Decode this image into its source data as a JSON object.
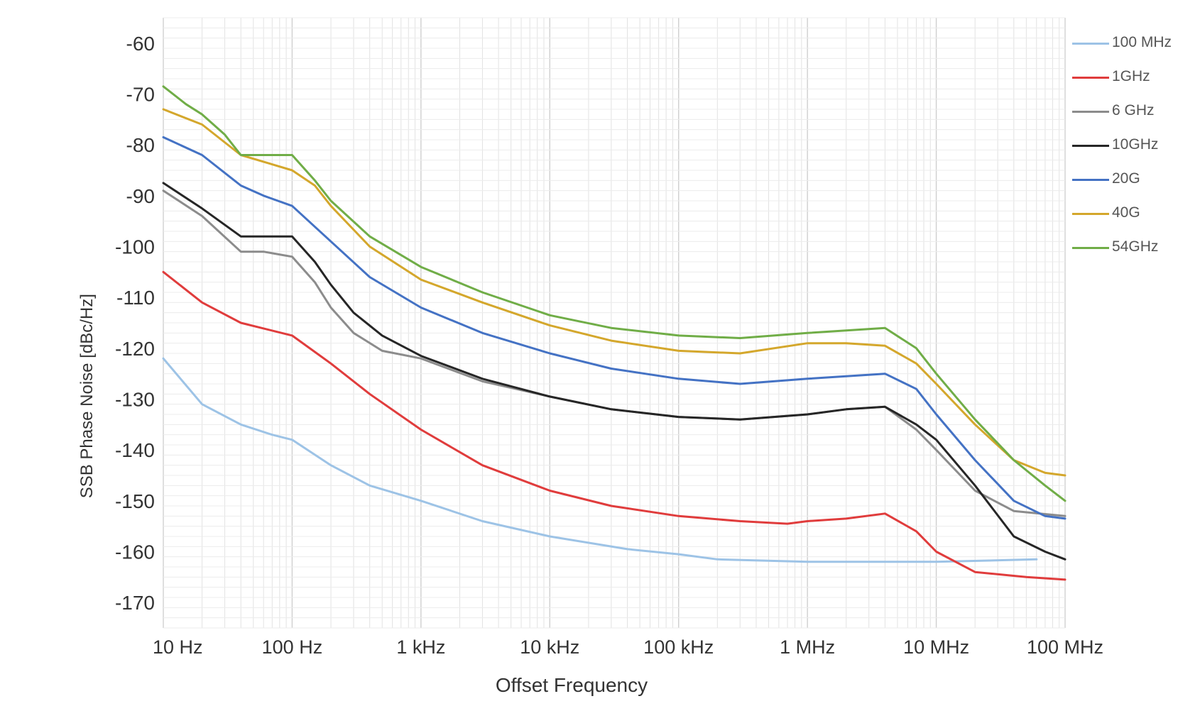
{
  "chart_data": {
    "type": "line",
    "title": "",
    "xlabel": "Offset Frequency",
    "ylabel": "SSB Phase Noise [dBc/Hz]",
    "x_scale": "log",
    "xlim": [
      10,
      100000000
    ],
    "ylim": [
      -175,
      -55
    ],
    "yticks": [
      -60,
      -70,
      -80,
      -90,
      -100,
      -110,
      -120,
      -130,
      -140,
      -150,
      -160,
      -170
    ],
    "xticks": [
      {
        "value": 10,
        "label": "10 Hz"
      },
      {
        "value": 100,
        "label": "100 Hz"
      },
      {
        "value": 1000,
        "label": "1 kHz"
      },
      {
        "value": 10000,
        "label": "10 kHz"
      },
      {
        "value": 100000,
        "label": "100 kHz"
      },
      {
        "value": 1000000,
        "label": "1 MHz"
      },
      {
        "value": 10000000,
        "label": "10 MHz"
      },
      {
        "value": 100000000,
        "label": "100 MHz"
      }
    ],
    "grid": true,
    "legend_position": "right",
    "series": [
      {
        "name": "100 MHz",
        "color": "#9dc3e6",
        "points": [
          [
            10,
            -122
          ],
          [
            20,
            -131
          ],
          [
            40,
            -135
          ],
          [
            70,
            -137
          ],
          [
            100,
            -138
          ],
          [
            200,
            -143
          ],
          [
            400,
            -147
          ],
          [
            1000,
            -150
          ],
          [
            3000,
            -154
          ],
          [
            10000,
            -157
          ],
          [
            40000,
            -159.5
          ],
          [
            100000,
            -160.5
          ],
          [
            200000,
            -161.5
          ],
          [
            1000000,
            -162
          ],
          [
            4000000,
            -162
          ],
          [
            10000000,
            -162
          ],
          [
            60000000,
            -161.5
          ]
        ]
      },
      {
        "name": "1GHz",
        "color": "#e03c3c",
        "points": [
          [
            10,
            -105
          ],
          [
            20,
            -111
          ],
          [
            40,
            -115
          ],
          [
            100,
            -117.5
          ],
          [
            200,
            -123
          ],
          [
            400,
            -129
          ],
          [
            1000,
            -136
          ],
          [
            3000,
            -143
          ],
          [
            10000,
            -148
          ],
          [
            30000,
            -151
          ],
          [
            100000,
            -153
          ],
          [
            300000,
            -154
          ],
          [
            700000,
            -154.5
          ],
          [
            1000000,
            -154
          ],
          [
            2000000,
            -153.5
          ],
          [
            4000000,
            -152.5
          ],
          [
            7000000,
            -156
          ],
          [
            10000000,
            -160
          ],
          [
            20000000,
            -164
          ],
          [
            50000000,
            -165
          ],
          [
            100000000,
            -165.5
          ]
        ]
      },
      {
        "name": "6 GHz",
        "color": "#8c8c8c",
        "points": [
          [
            10,
            -89
          ],
          [
            20,
            -94
          ],
          [
            40,
            -101
          ],
          [
            60,
            -101
          ],
          [
            100,
            -102
          ],
          [
            150,
            -107
          ],
          [
            200,
            -112
          ],
          [
            300,
            -117
          ],
          [
            500,
            -120.5
          ],
          [
            1000,
            -122
          ],
          [
            3000,
            -126.5
          ],
          [
            10000,
            -129.5
          ],
          [
            30000,
            -132
          ],
          [
            100000,
            -133.5
          ],
          [
            300000,
            -134
          ],
          [
            1000000,
            -133
          ],
          [
            2000000,
            -132
          ],
          [
            4000000,
            -131.5
          ],
          [
            7000000,
            -136
          ],
          [
            10000000,
            -140
          ],
          [
            20000000,
            -148
          ],
          [
            40000000,
            -152
          ],
          [
            100000000,
            -153
          ]
        ]
      },
      {
        "name": "10GHz",
        "color": "#262626",
        "points": [
          [
            10,
            -87.5
          ],
          [
            20,
            -92.5
          ],
          [
            40,
            -98
          ],
          [
            100,
            -98
          ],
          [
            150,
            -103
          ],
          [
            200,
            -107.5
          ],
          [
            300,
            -113
          ],
          [
            500,
            -117.5
          ],
          [
            1000,
            -121.5
          ],
          [
            3000,
            -126
          ],
          [
            10000,
            -129.5
          ],
          [
            30000,
            -132
          ],
          [
            100000,
            -133.5
          ],
          [
            300000,
            -134
          ],
          [
            1000000,
            -133
          ],
          [
            2000000,
            -132
          ],
          [
            4000000,
            -131.5
          ],
          [
            7000000,
            -135
          ],
          [
            10000000,
            -138
          ],
          [
            20000000,
            -147
          ],
          [
            40000000,
            -157
          ],
          [
            70000000,
            -160
          ],
          [
            100000000,
            -161.5
          ]
        ]
      },
      {
        "name": "20G",
        "color": "#4472c4",
        "points": [
          [
            10,
            -78.5
          ],
          [
            20,
            -82
          ],
          [
            40,
            -88
          ],
          [
            60,
            -90
          ],
          [
            100,
            -92
          ],
          [
            200,
            -99
          ],
          [
            400,
            -106
          ],
          [
            1000,
            -112
          ],
          [
            3000,
            -117
          ],
          [
            10000,
            -121
          ],
          [
            30000,
            -124
          ],
          [
            100000,
            -126
          ],
          [
            300000,
            -127
          ],
          [
            1000000,
            -126
          ],
          [
            2000000,
            -125.5
          ],
          [
            4000000,
            -125
          ],
          [
            7000000,
            -128
          ],
          [
            10000000,
            -133
          ],
          [
            20000000,
            -142
          ],
          [
            40000000,
            -150
          ],
          [
            70000000,
            -153
          ],
          [
            100000000,
            -153.5
          ]
        ]
      },
      {
        "name": "40G",
        "color": "#d4a72c",
        "points": [
          [
            10,
            -73
          ],
          [
            20,
            -76
          ],
          [
            40,
            -82
          ],
          [
            100,
            -85
          ],
          [
            150,
            -88
          ],
          [
            200,
            -92
          ],
          [
            400,
            -100
          ],
          [
            1000,
            -106.5
          ],
          [
            3000,
            -111
          ],
          [
            10000,
            -115.5
          ],
          [
            30000,
            -118.5
          ],
          [
            100000,
            -120.5
          ],
          [
            300000,
            -121
          ],
          [
            1000000,
            -119
          ],
          [
            2000000,
            -119
          ],
          [
            4000000,
            -119.5
          ],
          [
            7000000,
            -123
          ],
          [
            10000000,
            -127
          ],
          [
            20000000,
            -135
          ],
          [
            40000000,
            -142
          ],
          [
            70000000,
            -144.5
          ],
          [
            100000000,
            -145
          ]
        ]
      },
      {
        "name": "54GHz",
        "color": "#70ad47",
        "points": [
          [
            10,
            -68.5
          ],
          [
            15,
            -72
          ],
          [
            20,
            -74
          ],
          [
            30,
            -78
          ],
          [
            40,
            -82
          ],
          [
            60,
            -82
          ],
          [
            100,
            -82
          ],
          [
            150,
            -87
          ],
          [
            200,
            -91
          ],
          [
            400,
            -98
          ],
          [
            1000,
            -104
          ],
          [
            3000,
            -109
          ],
          [
            10000,
            -113.5
          ],
          [
            30000,
            -116
          ],
          [
            100000,
            -117.5
          ],
          [
            300000,
            -118
          ],
          [
            1000000,
            -117
          ],
          [
            2000000,
            -116.5
          ],
          [
            4000000,
            -116
          ],
          [
            7000000,
            -120
          ],
          [
            10000000,
            -125
          ],
          [
            20000000,
            -134
          ],
          [
            40000000,
            -142
          ],
          [
            70000000,
            -147
          ],
          [
            100000000,
            -150
          ]
        ]
      }
    ]
  }
}
